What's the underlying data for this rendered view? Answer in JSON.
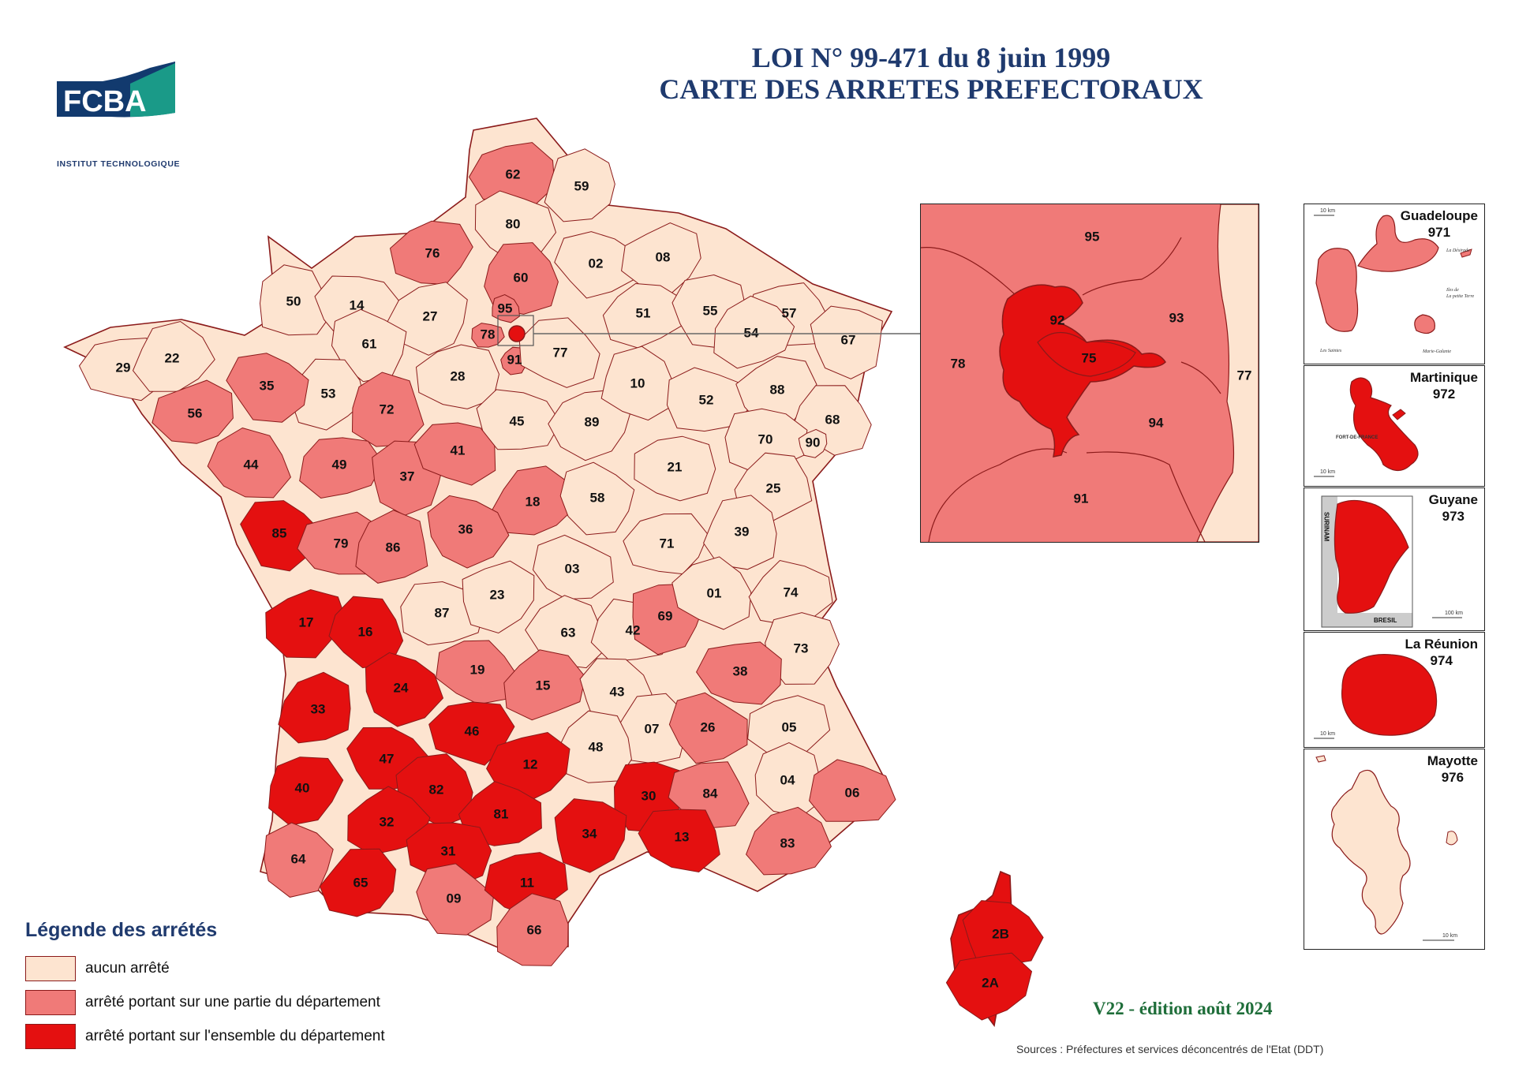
{
  "title": {
    "line1": "LOI  N° 99-471 du 8 juin 1999",
    "line2": "CARTE DES ARRETES PREFECTORAUX"
  },
  "logo": {
    "text": "FCBA",
    "subtitle": "INSTITUT TECHNOLOGIQUE"
  },
  "colors": {
    "none": "#fde4d0",
    "part": "#f07a78",
    "full": "#e41010",
    "title": "#1f3a6e"
  },
  "departments": [
    {
      "code": "62",
      "status": "part"
    },
    {
      "code": "59",
      "status": "none"
    },
    {
      "code": "80",
      "status": "none"
    },
    {
      "code": "76",
      "status": "part"
    },
    {
      "code": "60",
      "status": "part"
    },
    {
      "code": "02",
      "status": "none"
    },
    {
      "code": "08",
      "status": "none"
    },
    {
      "code": "50",
      "status": "none"
    },
    {
      "code": "14",
      "status": "none"
    },
    {
      "code": "27",
      "status": "none"
    },
    {
      "code": "95",
      "status": "part"
    },
    {
      "code": "78",
      "status": "part"
    },
    {
      "code": "91",
      "status": "part"
    },
    {
      "code": "77",
      "status": "none"
    },
    {
      "code": "51",
      "status": "none"
    },
    {
      "code": "55",
      "status": "none"
    },
    {
      "code": "57",
      "status": "none"
    },
    {
      "code": "54",
      "status": "none"
    },
    {
      "code": "67",
      "status": "none"
    },
    {
      "code": "29",
      "status": "none"
    },
    {
      "code": "22",
      "status": "none"
    },
    {
      "code": "61",
      "status": "none"
    },
    {
      "code": "28",
      "status": "none"
    },
    {
      "code": "53",
      "status": "none"
    },
    {
      "code": "35",
      "status": "part"
    },
    {
      "code": "56",
      "status": "part"
    },
    {
      "code": "72",
      "status": "part"
    },
    {
      "code": "45",
      "status": "none"
    },
    {
      "code": "89",
      "status": "none"
    },
    {
      "code": "10",
      "status": "none"
    },
    {
      "code": "52",
      "status": "none"
    },
    {
      "code": "88",
      "status": "none"
    },
    {
      "code": "68",
      "status": "none"
    },
    {
      "code": "70",
      "status": "none"
    },
    {
      "code": "90",
      "status": "none"
    },
    {
      "code": "44",
      "status": "part"
    },
    {
      "code": "49",
      "status": "part"
    },
    {
      "code": "37",
      "status": "part"
    },
    {
      "code": "41",
      "status": "part"
    },
    {
      "code": "18",
      "status": "part"
    },
    {
      "code": "58",
      "status": "none"
    },
    {
      "code": "21",
      "status": "none"
    },
    {
      "code": "25",
      "status": "none"
    },
    {
      "code": "85",
      "status": "full"
    },
    {
      "code": "79",
      "status": "part"
    },
    {
      "code": "86",
      "status": "part"
    },
    {
      "code": "36",
      "status": "part"
    },
    {
      "code": "71",
      "status": "none"
    },
    {
      "code": "39",
      "status": "none"
    },
    {
      "code": "03",
      "status": "none"
    },
    {
      "code": "17",
      "status": "full"
    },
    {
      "code": "16",
      "status": "full"
    },
    {
      "code": "87",
      "status": "none"
    },
    {
      "code": "23",
      "status": "none"
    },
    {
      "code": "63",
      "status": "none"
    },
    {
      "code": "42",
      "status": "none"
    },
    {
      "code": "69",
      "status": "part"
    },
    {
      "code": "01",
      "status": "none"
    },
    {
      "code": "74",
      "status": "none"
    },
    {
      "code": "73",
      "status": "none"
    },
    {
      "code": "19",
      "status": "part"
    },
    {
      "code": "15",
      "status": "part"
    },
    {
      "code": "43",
      "status": "none"
    },
    {
      "code": "38",
      "status": "part"
    },
    {
      "code": "33",
      "status": "full"
    },
    {
      "code": "24",
      "status": "full"
    },
    {
      "code": "46",
      "status": "full"
    },
    {
      "code": "07",
      "status": "none"
    },
    {
      "code": "26",
      "status": "part"
    },
    {
      "code": "05",
      "status": "none"
    },
    {
      "code": "48",
      "status": "none"
    },
    {
      "code": "47",
      "status": "full"
    },
    {
      "code": "12",
      "status": "full"
    },
    {
      "code": "04",
      "status": "none"
    },
    {
      "code": "06",
      "status": "part"
    },
    {
      "code": "40",
      "status": "full"
    },
    {
      "code": "82",
      "status": "full"
    },
    {
      "code": "81",
      "status": "full"
    },
    {
      "code": "30",
      "status": "full"
    },
    {
      "code": "84",
      "status": "part"
    },
    {
      "code": "32",
      "status": "full"
    },
    {
      "code": "34",
      "status": "full"
    },
    {
      "code": "13",
      "status": "full"
    },
    {
      "code": "83",
      "status": "part"
    },
    {
      "code": "64",
      "status": "part"
    },
    {
      "code": "31",
      "status": "full"
    },
    {
      "code": "65",
      "status": "full"
    },
    {
      "code": "09",
      "status": "part"
    },
    {
      "code": "11",
      "status": "full"
    },
    {
      "code": "66",
      "status": "part"
    },
    {
      "code": "2B",
      "status": "full"
    },
    {
      "code": "2A",
      "status": "full"
    }
  ],
  "idf_inset": {
    "labels": [
      "95",
      "92",
      "93",
      "78",
      "75",
      "77",
      "94",
      "91"
    ]
  },
  "dom": [
    {
      "name": "Guadeloupe",
      "code": "971",
      "status": "part"
    },
    {
      "name": "Martinique",
      "code": "972",
      "status": "full"
    },
    {
      "name": "Guyane",
      "code": "973",
      "status": "full"
    },
    {
      "name": "La Réunion",
      "code": "974",
      "status": "full"
    },
    {
      "name": "Mayotte",
      "code": "976",
      "status": "none"
    }
  ],
  "dom_small_labels": {
    "guadeloupe": [
      "La Désirade",
      "Iles de",
      "La petite Terre",
      "Les Saintes",
      "Marie-Galante"
    ],
    "martinique": "FORT-DE-FRANCE",
    "guyane": [
      "SURINAM",
      "BRESIL"
    ],
    "scale_10": "10 km",
    "scale_100": "100 km"
  },
  "legend": {
    "title": "Légende des arrétés",
    "items": [
      {
        "status": "none",
        "label": "aucun arrêté"
      },
      {
        "status": "part",
        "label": "arrêté portant sur une partie du département"
      },
      {
        "status": "full",
        "label": "arrêté portant sur l'ensemble du département"
      }
    ]
  },
  "edition": "V22  -  édition août 2024",
  "sources": "Sources : Préfectures et services déconcentrés de l'Etat (DDT)"
}
